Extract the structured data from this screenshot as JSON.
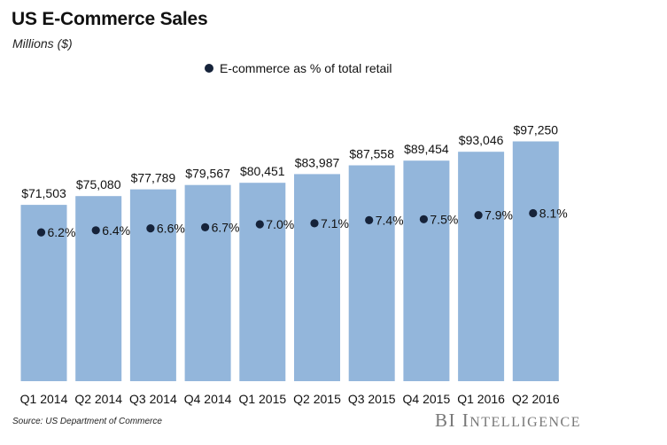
{
  "header": {
    "title": "US E-Commerce Sales",
    "subtitle": "Millions ($)"
  },
  "legend": {
    "label": "E-commerce as % of total retail"
  },
  "footer": {
    "source": "Source: US Department of Commerce",
    "brand_initials": "BI",
    "brand_word_first": "I",
    "brand_word_rest": "NTELLIGENCE"
  },
  "colors": {
    "bar": "#93b6db",
    "dot": "#16233a",
    "text": "#111111"
  },
  "chart_data": {
    "type": "bar",
    "categories": [
      "Q1 2014",
      "Q2 2014",
      "Q3 2014",
      "Q4 2014",
      "Q1 2015",
      "Q2 2015",
      "Q3 2015",
      "Q4 2015",
      "Q1 2016",
      "Q2 2016"
    ],
    "series": [
      {
        "name": "",
        "values": [
          71503,
          75080,
          77789,
          79567,
          80451,
          83987,
          87558,
          89454,
          93046,
          97250
        ],
        "labels": [
          "$71,503",
          "$75,080",
          "$77,789",
          "$79,567",
          "$80,451",
          "$83,987",
          "$87,558",
          "$89,454",
          "$93,046",
          "$97,250"
        ]
      },
      {
        "name": "E-commerce as % of total retail",
        "values": [
          6.2,
          6.4,
          6.6,
          6.7,
          7.0,
          7.1,
          7.4,
          7.5,
          7.9,
          8.1
        ],
        "labels": [
          "6.2%",
          "6.4%",
          "6.6%",
          "6.7%",
          "7.0%",
          "7.1%",
          "7.4%",
          "7.5%",
          "7.9%",
          "8.1%"
        ]
      }
    ],
    "title": "US E-Commerce Sales",
    "subtitle": "Millions ($)",
    "xlabel": "",
    "ylabel": "",
    "grid": false,
    "legend_position": "top-center"
  }
}
